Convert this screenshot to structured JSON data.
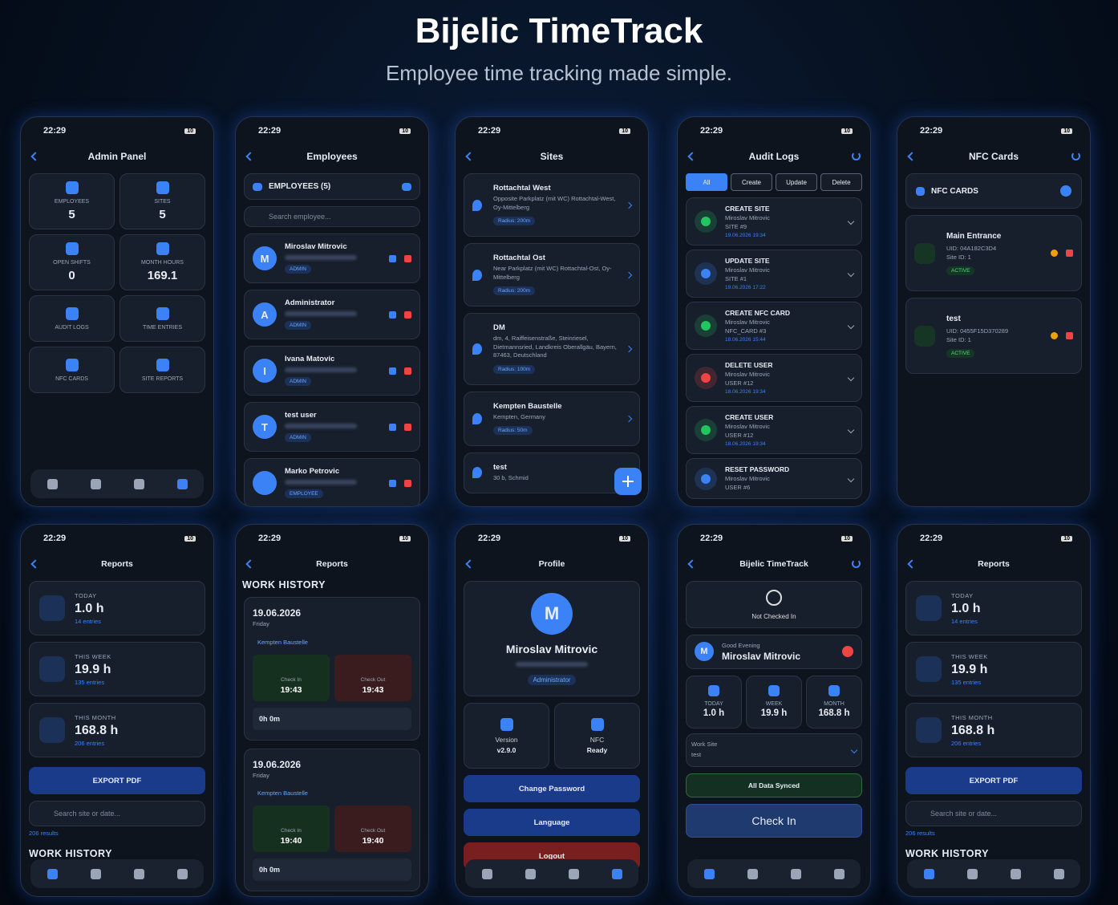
{
  "header": {
    "title": "Bijelic TimeTrack",
    "subtitle": "Employee time tracking made simple."
  },
  "screens": [
    {
      "time": "22:29",
      "battery": "10",
      "title": "Admin Panel",
      "tiles": [
        {
          "label": "EMPLOYEES",
          "value": 5
        },
        {
          "label": "SITES",
          "value": 5
        },
        {
          "label": "OPEN SHIFTS",
          "value": 0
        },
        {
          "label": "MONTH HOURS",
          "value": 169.1
        },
        {
          "label": "AUDIT LOGS"
        },
        {
          "label": "TIME ENTRIES"
        },
        {
          "label": "NFC CARDS"
        },
        {
          "label": "SITE REPORTS"
        }
      ]
    },
    {
      "time": "22:29",
      "battery": "10",
      "title": "Employees",
      "section": "EMPLOYEES (5)",
      "search": "Search employee...",
      "employees": [
        {
          "initial": "M",
          "name": "Miroslav Mitrovic",
          "role": "ADMIN"
        },
        {
          "initial": "A",
          "name": "Administrator",
          "role": "ADMIN"
        },
        {
          "initial": "I",
          "name": "Ivana Matovic",
          "role": "ADMIN"
        },
        {
          "initial": "T",
          "name": "test user",
          "role": "ADMIN"
        },
        {
          "name": "Marko Petrovic",
          "role": "EMPLOYEE"
        }
      ]
    },
    {
      "time": "22:29",
      "battery": "10",
      "title": "Sites",
      "sites": [
        {
          "name": "Rottachtal West",
          "address": "Opposite Parkplatz (mit WC) Rottachtal-West, Oy-Mittelberg",
          "radius": "Radius: 200m"
        },
        {
          "name": "Rottachtal Ost",
          "address": "Near Parkplatz (mit WC) Rottachtal-Ost, Oy-Mittelberg",
          "radius": "Radius: 200m"
        },
        {
          "name": "DM",
          "address": "dm, 4, Raiffeisenstraße, Steinriesel, Dietmannsried, Landkreis Oberallgäu, Bayern, 87463, Deutschland",
          "radius": "Radius: 100m"
        },
        {
          "name": "Kempten Baustelle",
          "address": "Kempten, Germany",
          "radius": "Radius: 50m"
        },
        {
          "name": "test",
          "address": "30 b, Schmid"
        }
      ]
    },
    {
      "time": "22:29",
      "battery": "10",
      "title": "Audit Logs",
      "filters": [
        "All",
        "Create",
        "Update",
        "Delete"
      ],
      "logs": [
        {
          "action": "CREATE SITE",
          "user": "Miroslav Mitrovic",
          "target": "SITE #9",
          "date": "19.06.2026 19:34"
        },
        {
          "action": "UPDATE SITE",
          "user": "Miroslav Mitrovic",
          "target": "SITE #1",
          "date": "19.06.2026 17:22"
        },
        {
          "action": "CREATE NFC CARD",
          "user": "Miroslav Mitrovic",
          "target": "NFC_CARD #3",
          "date": "18.06.2026 15:44"
        },
        {
          "action": "DELETE USER",
          "user": "Miroslav Mitrovic",
          "target": "USER #12",
          "date": "18.06.2026 19:34"
        },
        {
          "action": "CREATE USER",
          "user": "Miroslav Mitrovic",
          "target": "USER #12",
          "date": "18.06.2026 19:34"
        },
        {
          "action": "RESET PASSWORD",
          "user": "Miroslav Mitrovic",
          "target": "USER #6"
        }
      ]
    },
    {
      "time": "22:29",
      "battery": "10",
      "title": "NFC Cards",
      "section": "NFC CARDS",
      "cards": [
        {
          "name": "Main Entrance",
          "uid": "UID: 04A182C3D4",
          "site": "Site ID: 1",
          "status": "ACTIVE"
        },
        {
          "name": "test",
          "uid": "UID: 0455F15D370289",
          "site": "Site ID: 1",
          "status": "ACTIVE"
        }
      ]
    },
    {
      "time": "22:29",
      "battery": "10",
      "title": "Reports",
      "stats": [
        {
          "label": "TODAY",
          "value": "1.0 h",
          "sub": "14 entries"
        },
        {
          "label": "THIS WEEK",
          "value": "19.9 h",
          "sub": "135 entries"
        },
        {
          "label": "THIS MONTH",
          "value": "168.8 h",
          "sub": "206 entries"
        }
      ],
      "export": "EXPORT PDF",
      "search": "Search site or date...",
      "results": "206 results",
      "history": "WORK HISTORY"
    },
    {
      "time": "22:29",
      "battery": "10",
      "title": "Reports",
      "history": "WORK HISTORY",
      "entries": [
        {
          "date": "19.06.2026",
          "day": "Friday",
          "site": "Kempten Baustelle",
          "in_label": "Check In",
          "in": "19:43",
          "out_label": "Check Out",
          "out": "19:43",
          "duration": "0h 0m"
        },
        {
          "date": "19.06.2026",
          "day": "Friday",
          "site": "Kempten Baustelle",
          "in_label": "Check In",
          "in": "19:40",
          "out_label": "Check Out",
          "out": "19:40",
          "duration": "0h 0m"
        }
      ]
    },
    {
      "time": "22:29",
      "battery": "10",
      "title": "Profile",
      "initial": "M",
      "name": "Miroslav Mitrovic",
      "role": "Administrator",
      "info": [
        {
          "label": "Version",
          "value": "v2.9.0"
        },
        {
          "label": "NFC",
          "value": "Ready"
        }
      ],
      "buttons": [
        "Change Password",
        "Language",
        "Logout"
      ]
    },
    {
      "time": "22:29",
      "battery": "10",
      "title": "Bijelic TimeTrack",
      "status": "Not Checked In",
      "initial": "M",
      "greeting": "Good Evening",
      "name": "Miroslav Mitrovic",
      "stats": [
        {
          "label": "TODAY",
          "value": "1.0 h"
        },
        {
          "label": "WEEK",
          "value": "19.9 h"
        },
        {
          "label": "MONTH",
          "value": "168.8 h"
        }
      ],
      "site_label": "Work Site",
      "site": "test",
      "synced": "All Data Synced",
      "action": "Check In"
    },
    {
      "time": "22:29",
      "battery": "10",
      "title": "Reports",
      "stats": [
        {
          "label": "TODAY",
          "value": "1.0 h",
          "sub": "14 entries"
        },
        {
          "label": "THIS WEEK",
          "value": "19.9 h",
          "sub": "135 entries"
        },
        {
          "label": "THIS MONTH",
          "value": "168.8 h",
          "sub": "206 entries"
        }
      ],
      "export": "EXPORT PDF",
      "search": "Search site or date...",
      "results": "206 results",
      "history": "WORK HISTORY"
    }
  ]
}
